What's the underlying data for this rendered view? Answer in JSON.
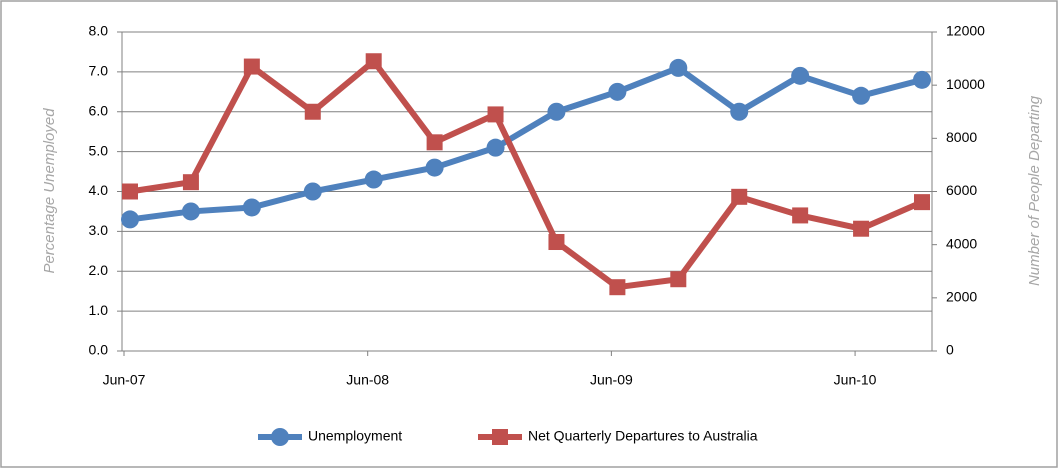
{
  "chart_data": {
    "type": "line",
    "categories": [
      "Jun-07",
      null,
      null,
      null,
      "Jun-08",
      null,
      null,
      null,
      "Jun-09",
      null,
      null,
      null,
      "Jun-10",
      null
    ],
    "y_label": "Percentage Unemployed",
    "y2_label": "Number of People Departing",
    "ylim": [
      0,
      8
    ],
    "yticks": [
      {
        "value": 0,
        "label": "0.0"
      },
      {
        "value": 1,
        "label": "1.0"
      },
      {
        "value": 2,
        "label": "2.0"
      },
      {
        "value": 3,
        "label": "3.0"
      },
      {
        "value": 4,
        "label": "4.0"
      },
      {
        "value": 5,
        "label": "5.0"
      },
      {
        "value": 6,
        "label": "6.0"
      },
      {
        "value": 7,
        "label": "7.0"
      },
      {
        "value": 8,
        "label": "8.0"
      }
    ],
    "y2lim": [
      0,
      12000
    ],
    "y2ticks": [
      0,
      2000,
      4000,
      6000,
      8000,
      10000,
      12000
    ],
    "grid": true,
    "legend": "bottom",
    "series": [
      {
        "name": "Unemployment",
        "color": "#4f81bd",
        "marker": "circle",
        "values": [
          3.3,
          3.5,
          3.6,
          4.0,
          4.3,
          4.6,
          5.1,
          6.0,
          6.5,
          7.1,
          6.0,
          6.9,
          6.4,
          6.8
        ]
      },
      {
        "name": "Net Quarterly Departures to Australia",
        "color": "#c0504d",
        "marker": "square",
        "axis": "y2",
        "values": [
          6000,
          6350,
          10700,
          9000,
          10900,
          7850,
          8900,
          4100,
          2400,
          2700,
          5800,
          5100,
          4600,
          5600
        ]
      }
    ]
  }
}
